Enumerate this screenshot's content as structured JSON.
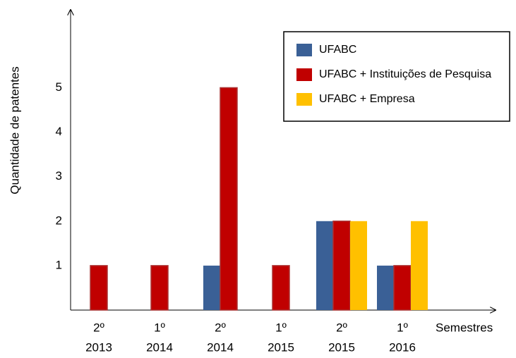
{
  "chart_data": {
    "type": "bar",
    "ylabel": "Quantidade de patentes",
    "xlabel": "Semestres",
    "categories": [
      [
        "2º",
        "2013"
      ],
      [
        "1º",
        "2014"
      ],
      [
        "2º",
        "2014"
      ],
      [
        "1º",
        "2015"
      ],
      [
        "2º",
        "2015"
      ],
      [
        "1º",
        "2016"
      ]
    ],
    "series": [
      {
        "name": "UFABC",
        "color": "#3a6096",
        "values": [
          null,
          null,
          1,
          null,
          2,
          1
        ]
      },
      {
        "name": "UFABC + Instituições de Pesquisa",
        "color": "#c00000",
        "values": [
          1,
          1,
          5,
          1,
          2,
          1
        ]
      },
      {
        "name": "UFABC + Empresa",
        "color": "#ffc000",
        "values": [
          null,
          null,
          null,
          null,
          2,
          2
        ]
      }
    ],
    "ylim": [
      0,
      6.75
    ],
    "yticks": [
      1,
      2,
      3,
      4,
      5
    ],
    "grid": false,
    "legend": "upper right"
  }
}
